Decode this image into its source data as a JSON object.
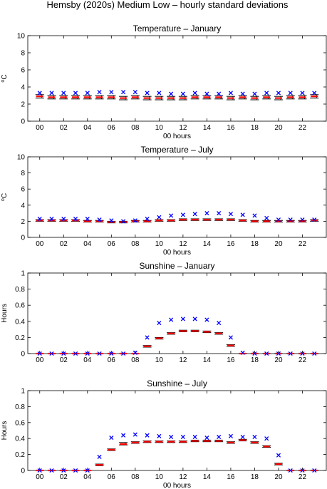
{
  "figure_title": "Hemsby (2020s) Medium Low – hourly standard deviations",
  "colors": {
    "observed": "#0000ff",
    "mean": "#ff0000",
    "range": "#000000"
  },
  "chart_data": [
    {
      "type": "scatter",
      "title": "Temperature – January",
      "xlabel": "00 hours",
      "ylabel_base": "C",
      "ylabel_sup": "o",
      "xlim": [
        -1,
        24
      ],
      "ylim": [
        0,
        10
      ],
      "xtick_values": [
        0,
        2,
        4,
        6,
        8,
        10,
        12,
        14,
        16,
        18,
        20,
        22
      ],
      "xtick_labels": [
        "00",
        "02",
        "04",
        "06",
        "08",
        "10",
        "12",
        "14",
        "16",
        "18",
        "20",
        "22"
      ],
      "ytick_values": [
        0,
        2,
        4,
        6,
        8,
        10
      ],
      "ytick_labels": [
        "0",
        "2",
        "4",
        "6",
        "8",
        "10"
      ],
      "x": [
        0,
        1,
        2,
        3,
        4,
        5,
        6,
        7,
        8,
        9,
        10,
        11,
        12,
        13,
        14,
        15,
        16,
        17,
        18,
        19,
        20,
        21,
        22,
        23
      ],
      "series": [
        {
          "marker": "x",
          "values": [
            3.3,
            3.3,
            3.3,
            3.3,
            3.3,
            3.4,
            3.4,
            3.4,
            3.4,
            3.3,
            3.3,
            3.2,
            3.2,
            3.3,
            3.2,
            3.2,
            3.3,
            3.2,
            3.2,
            3.3,
            3.3,
            3.3,
            3.3,
            3.3
          ]
        },
        {
          "marker": "dash",
          "values": [
            2.9,
            2.8,
            2.8,
            2.8,
            2.8,
            2.8,
            2.8,
            2.7,
            2.8,
            2.7,
            2.7,
            2.7,
            2.7,
            2.8,
            2.8,
            2.8,
            2.7,
            2.8,
            2.7,
            2.8,
            2.7,
            2.8,
            2.8,
            2.9
          ]
        }
      ],
      "range_low": [
        2.7,
        2.6,
        2.6,
        2.6,
        2.6,
        2.6,
        2.6,
        2.5,
        2.6,
        2.5,
        2.5,
        2.5,
        2.5,
        2.6,
        2.6,
        2.6,
        2.5,
        2.6,
        2.5,
        2.6,
        2.5,
        2.6,
        2.6,
        2.7
      ],
      "range_high": [
        3.1,
        3.0,
        3.0,
        3.0,
        3.0,
        3.0,
        3.0,
        2.9,
        3.0,
        2.9,
        2.9,
        2.9,
        2.9,
        3.0,
        3.0,
        3.0,
        2.9,
        3.0,
        2.9,
        3.0,
        2.9,
        3.0,
        3.0,
        3.1
      ]
    },
    {
      "type": "scatter",
      "title": "Temperature – July",
      "xlabel": "00 hours",
      "ylabel_base": "C",
      "ylabel_sup": "o",
      "xlim": [
        -1,
        24
      ],
      "ylim": [
        0,
        10
      ],
      "xtick_values": [
        0,
        2,
        4,
        6,
        8,
        10,
        12,
        14,
        16,
        18,
        20,
        22
      ],
      "xtick_labels": [
        "00",
        "02",
        "04",
        "06",
        "08",
        "10",
        "12",
        "14",
        "16",
        "18",
        "20",
        "22"
      ],
      "ytick_values": [
        0,
        2,
        4,
        6,
        8,
        10
      ],
      "ytick_labels": [
        "0",
        "2",
        "4",
        "6",
        "8",
        "10"
      ],
      "x": [
        0,
        1,
        2,
        3,
        4,
        5,
        6,
        7,
        8,
        9,
        10,
        11,
        12,
        13,
        14,
        15,
        16,
        17,
        18,
        19,
        20,
        21,
        22,
        23
      ],
      "series": [
        {
          "marker": "x",
          "values": [
            2.3,
            2.3,
            2.3,
            2.3,
            2.3,
            2.2,
            2.1,
            2.0,
            2.1,
            2.3,
            2.5,
            2.7,
            2.8,
            2.9,
            3.0,
            3.0,
            2.9,
            2.8,
            2.7,
            2.4,
            2.2,
            2.2,
            2.2,
            2.2
          ]
        },
        {
          "marker": "dash",
          "values": [
            2.1,
            2.1,
            2.1,
            2.1,
            2.0,
            2.0,
            1.9,
            1.9,
            2.0,
            2.0,
            2.1,
            2.1,
            2.2,
            2.2,
            2.2,
            2.2,
            2.2,
            2.1,
            2.0,
            2.0,
            2.0,
            2.0,
            2.0,
            2.1
          ]
        }
      ],
      "range_low": [
        2.0,
        2.0,
        2.0,
        2.0,
        1.9,
        1.9,
        1.8,
        1.8,
        1.9,
        1.9,
        2.0,
        2.0,
        2.1,
        2.1,
        2.1,
        2.1,
        2.1,
        2.0,
        1.9,
        1.9,
        1.9,
        1.9,
        1.9,
        2.0
      ],
      "range_high": [
        2.2,
        2.2,
        2.2,
        2.2,
        2.1,
        2.1,
        2.0,
        2.0,
        2.1,
        2.1,
        2.2,
        2.2,
        2.3,
        2.3,
        2.3,
        2.3,
        2.3,
        2.2,
        2.1,
        2.1,
        2.1,
        2.1,
        2.1,
        2.2
      ]
    },
    {
      "type": "scatter",
      "title": "Sunshine – January",
      "xlabel": "",
      "ylabel_base": "Hours",
      "ylabel_sup": "",
      "xlim": [
        -1,
        24
      ],
      "ylim": [
        0,
        1
      ],
      "xtick_values": [
        0,
        2,
        4,
        6,
        8,
        10,
        12,
        14,
        16,
        18,
        20,
        22
      ],
      "xtick_labels": [
        "00",
        "02",
        "04",
        "06",
        "08",
        "10",
        "12",
        "14",
        "16",
        "18",
        "20",
        "22"
      ],
      "ytick_values": [
        0,
        0.2,
        0.4,
        0.6,
        0.8,
        1
      ],
      "ytick_labels": [
        "0",
        "0.2",
        "0.4",
        "0.6",
        "0.8",
        "1"
      ],
      "x": [
        0,
        1,
        2,
        3,
        4,
        5,
        6,
        7,
        8,
        9,
        10,
        11,
        12,
        13,
        14,
        15,
        16,
        17,
        18,
        19,
        20,
        21,
        22,
        23
      ],
      "series": [
        {
          "marker": "x",
          "values": [
            0,
            0,
            0,
            0,
            0,
            0,
            0,
            0,
            0.01,
            0.2,
            0.38,
            0.42,
            0.43,
            0.43,
            0.42,
            0.38,
            0.2,
            0.01,
            0,
            0,
            0,
            0,
            0,
            0
          ]
        },
        {
          "marker": "dash",
          "values": [
            0,
            0,
            0,
            0,
            0,
            0,
            0,
            0,
            0,
            0.09,
            0.19,
            0.25,
            0.28,
            0.28,
            0.27,
            0.25,
            0.1,
            0,
            0,
            0,
            0,
            0,
            0,
            0
          ]
        }
      ],
      "range_low": [
        0,
        0,
        0,
        0,
        0,
        0,
        0,
        0,
        0,
        0.08,
        0.18,
        0.24,
        0.27,
        0.27,
        0.26,
        0.24,
        0.09,
        0,
        0,
        0,
        0,
        0,
        0,
        0
      ],
      "range_high": [
        0,
        0,
        0,
        0,
        0,
        0,
        0,
        0,
        0,
        0.1,
        0.2,
        0.26,
        0.29,
        0.29,
        0.28,
        0.26,
        0.11,
        0,
        0,
        0,
        0,
        0,
        0,
        0
      ]
    },
    {
      "type": "scatter",
      "title": "Sunshine – July",
      "xlabel": "00 hours",
      "ylabel_base": "Hours",
      "ylabel_sup": "",
      "xlim": [
        -1,
        24
      ],
      "ylim": [
        0,
        1
      ],
      "xtick_values": [
        0,
        2,
        4,
        6,
        8,
        10,
        12,
        14,
        16,
        18,
        20,
        22
      ],
      "xtick_labels": [
        "00",
        "02",
        "04",
        "06",
        "08",
        "10",
        "12",
        "14",
        "16",
        "18",
        "20",
        "22"
      ],
      "ytick_values": [
        0,
        0.2,
        0.4,
        0.6,
        0.8,
        1
      ],
      "ytick_labels": [
        "0",
        "0.2",
        "0.4",
        "0.6",
        "0.8",
        "1"
      ],
      "x": [
        0,
        1,
        2,
        3,
        4,
        5,
        6,
        7,
        8,
        9,
        10,
        11,
        12,
        13,
        14,
        15,
        16,
        17,
        18,
        19,
        20,
        21,
        22,
        23
      ],
      "series": [
        {
          "marker": "x",
          "values": [
            0,
            0,
            0,
            0,
            0,
            0.17,
            0.41,
            0.44,
            0.45,
            0.44,
            0.43,
            0.42,
            0.42,
            0.42,
            0.41,
            0.42,
            0.43,
            0.42,
            0.42,
            0.4,
            0.19,
            0,
            0,
            0
          ]
        },
        {
          "marker": "dash",
          "values": [
            0,
            0,
            0,
            0,
            0,
            0.07,
            0.26,
            0.33,
            0.35,
            0.36,
            0.36,
            0.36,
            0.36,
            0.37,
            0.37,
            0.37,
            0.35,
            0.38,
            0.35,
            0.3,
            0.08,
            0,
            0,
            0
          ]
        }
      ],
      "range_low": [
        0,
        0,
        0,
        0,
        0,
        0.06,
        0.25,
        0.32,
        0.34,
        0.35,
        0.35,
        0.35,
        0.35,
        0.36,
        0.36,
        0.36,
        0.34,
        0.37,
        0.34,
        0.29,
        0.07,
        0,
        0,
        0
      ],
      "range_high": [
        0,
        0,
        0,
        0,
        0,
        0.08,
        0.27,
        0.35,
        0.36,
        0.37,
        0.37,
        0.37,
        0.37,
        0.38,
        0.38,
        0.38,
        0.36,
        0.39,
        0.36,
        0.31,
        0.09,
        0,
        0,
        0
      ]
    }
  ]
}
